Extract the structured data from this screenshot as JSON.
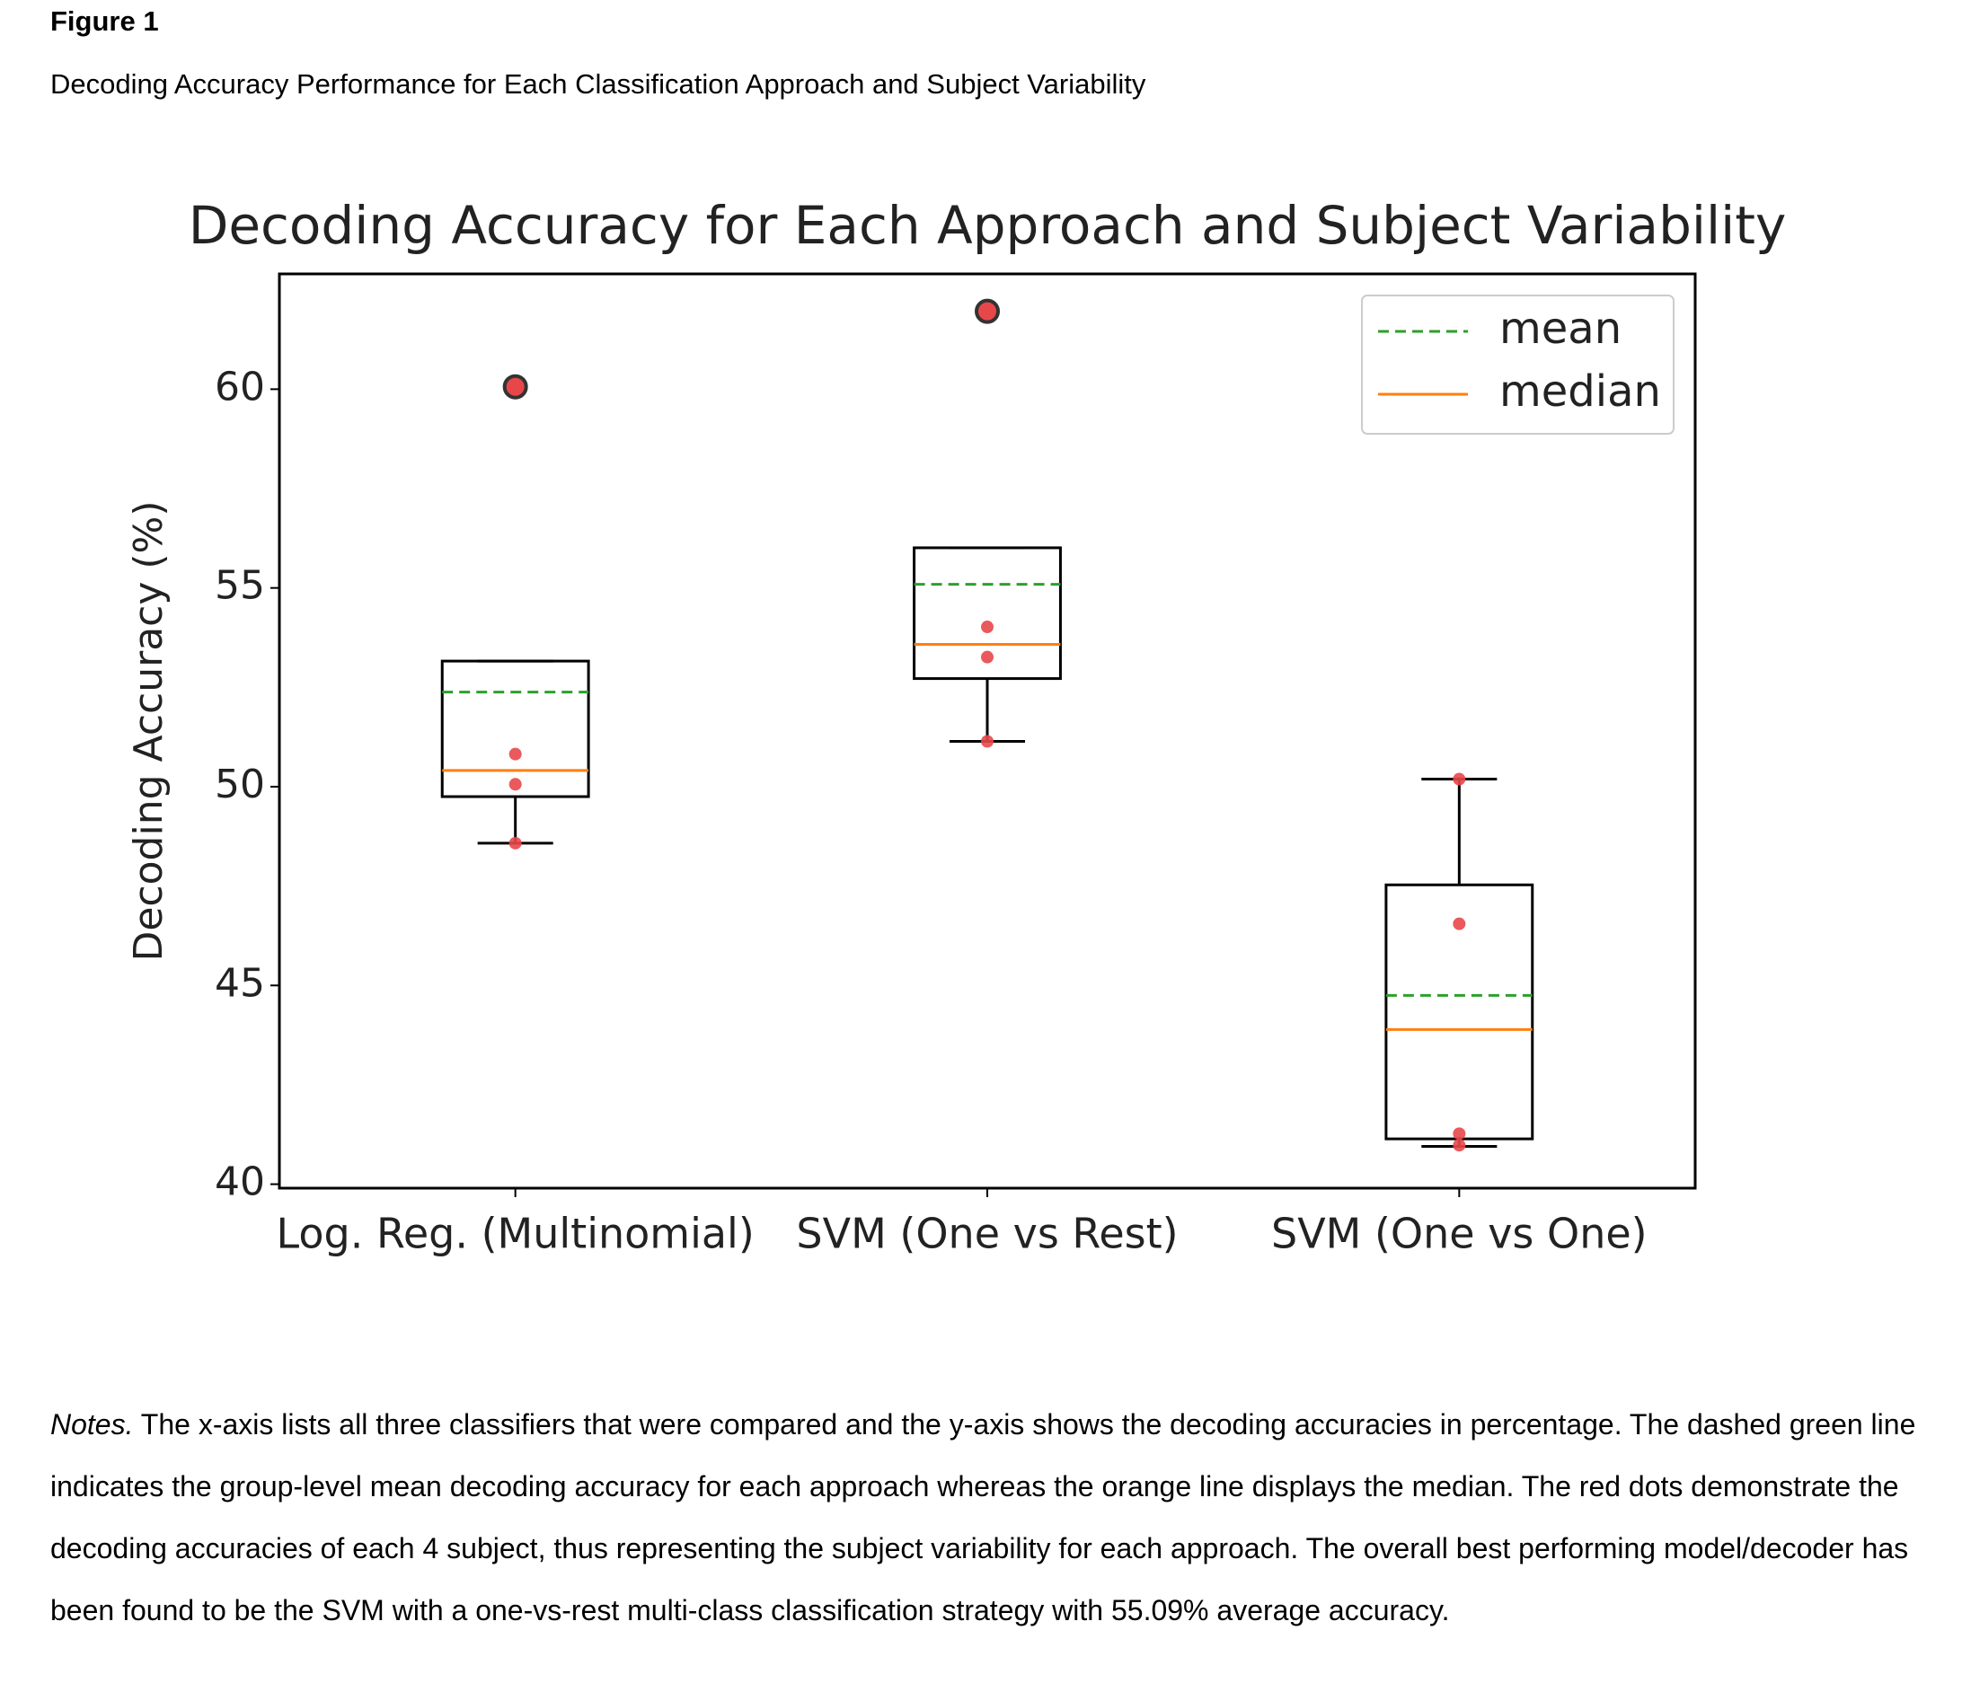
{
  "figure_label": "Figure 1",
  "figure_caption": "Decoding Accuracy Performance for Each Classification Approach and Subject Variability",
  "notes": {
    "label": "Notes.",
    "text": "The x-axis lists all three classifiers that were compared and the y-axis shows the decoding accuracies in percentage. The dashed green line indicates the group-level mean decoding accuracy for each approach whereas the orange line displays the median. The red dots demonstrate the decoding accuracies of each 4 subject, thus representing the subject variability for each approach. The overall best performing model/decoder has been found to be the SVM with a one-vs-rest multi-class classification strategy with 55.09% average accuracy."
  },
  "chart_data": {
    "type": "box",
    "title": "Decoding Accuracy for Each Approach and Subject Variability",
    "ylabel": "Decoding Accuracy (%)",
    "categories": [
      "Log. Reg. (Multinomial)",
      "SVM (One vs Rest)",
      "SVM (One vs One)"
    ],
    "boxes": [
      {
        "whislo": 48.58,
        "q1": 49.75,
        "med": 50.41,
        "mean": 52.38,
        "q3": 53.16,
        "whishi": 53.16,
        "fliers": [
          60.06
        ],
        "points": [
          50.82,
          50.06,
          48.58
        ]
      },
      {
        "whislo": 51.14,
        "q1": 52.72,
        "med": 53.58,
        "mean": 55.09,
        "q3": 56.01,
        "whishi": 56.01,
        "fliers": [
          61.96
        ],
        "points": [
          54.02,
          53.26,
          51.14
        ]
      },
      {
        "whislo": 40.95,
        "q1": 41.14,
        "med": 43.89,
        "mean": 44.75,
        "q3": 47.53,
        "whishi": 50.19,
        "fliers": [],
        "points": [
          50.19,
          46.55,
          41.27,
          40.98
        ]
      }
    ],
    "ylim": [
      39.9,
      62.9
    ],
    "yticks": [
      40,
      45,
      50,
      55,
      60
    ],
    "point_color": "#e8474a",
    "box_color": "#000000",
    "legend_loc": "upper right",
    "legend": [
      {
        "name": "mean",
        "color": "#2ca02c",
        "dashed": true
      },
      {
        "name": "median",
        "color": "#ff7f0e",
        "dashed": false
      }
    ]
  }
}
